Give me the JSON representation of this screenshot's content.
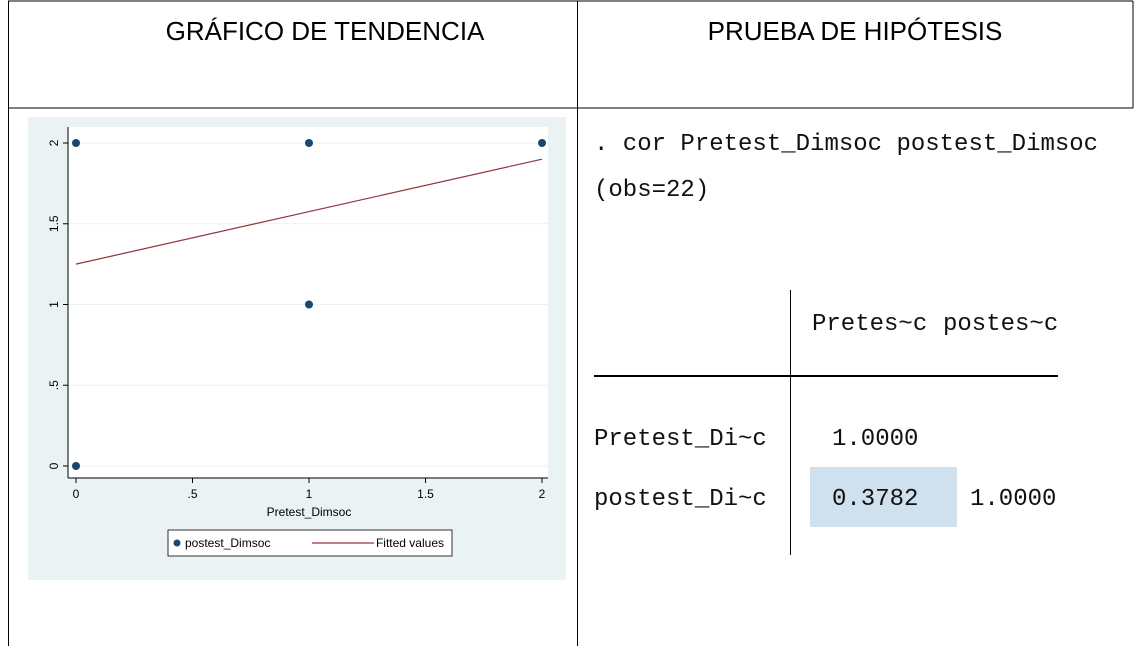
{
  "header": {
    "left": "GRÁFICO DE TENDENCIA",
    "right": "PRUEBA DE HIPÓTESIS"
  },
  "chart_data": {
    "type": "scatter",
    "x_label": "Pretest_Dimsoc",
    "series": [
      {
        "name": "postest_Dimsoc",
        "color": "#1a476f",
        "x": [
          0,
          0,
          1,
          1,
          2
        ],
        "values": [
          2,
          0,
          2,
          1,
          2
        ]
      },
      {
        "name": "Fitted values",
        "color": "#90353b",
        "type": "line",
        "x": [
          0,
          2
        ],
        "values": [
          1.25,
          1.9
        ]
      }
    ],
    "xlim": [
      0,
      2
    ],
    "ylim": [
      0,
      2
    ],
    "xticks": [
      0,
      {
        "value": 0.5,
        "label": ".5"
      },
      1,
      1.5,
      2
    ],
    "yticks": [
      0,
      {
        "value": 0.5,
        "label": ".5"
      },
      1,
      1.5,
      2
    ],
    "grid": true
  },
  "output": {
    "command": ". cor Pretest_Dimsoc postest_Dimsoc",
    "obs": "(obs=22)",
    "columns": [
      "Pretes~c",
      "postes~c"
    ],
    "rows": [
      {
        "label": "Pretest_Di~c",
        "values": [
          "1.0000"
        ]
      },
      {
        "label": "postest_Di~c",
        "values": [
          "0.3782",
          "1.0000"
        ]
      }
    ]
  }
}
